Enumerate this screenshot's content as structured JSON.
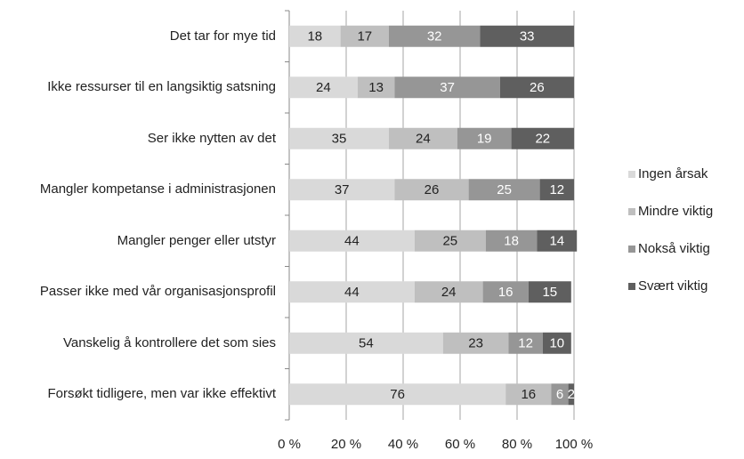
{
  "chart_data": {
    "type": "stacked_bar_horizontal",
    "categories": [
      "Det tar for mye tid",
      "Ikke ressurser til en langsiktig satsning",
      "Ser ikke nytten av det",
      "Mangler kompetanse i administrasjonen",
      "Mangler penger eller utstyr",
      "Passer ikke med vår organisasjonsprofil",
      "Vanskelig å kontrollere det som sies",
      "Forsøkt tidligere, men var ikke effektivt"
    ],
    "series": [
      {
        "name": "Ingen årsak",
        "color": "#d9d9d9",
        "values": [
          18,
          24,
          35,
          37,
          44,
          44,
          54,
          76
        ]
      },
      {
        "name": "Mindre viktig",
        "color": "#bfbfbf",
        "values": [
          17,
          13,
          24,
          26,
          25,
          24,
          23,
          16
        ]
      },
      {
        "name": "Nokså viktig",
        "color": "#969696",
        "values": [
          32,
          37,
          19,
          25,
          18,
          16,
          12,
          6
        ]
      },
      {
        "name": "Svært viktig",
        "color": "#5f5f5f",
        "values": [
          33,
          26,
          22,
          12,
          14,
          15,
          10,
          2
        ]
      }
    ],
    "xlim": [
      0,
      100
    ],
    "xticks": [
      {
        "value": 0,
        "label": "0 %"
      },
      {
        "value": 20,
        "label": "20 %"
      },
      {
        "value": 40,
        "label": "40 %"
      },
      {
        "value": 60,
        "label": "60 %"
      },
      {
        "value": 80,
        "label": "80 %"
      },
      {
        "value": 100,
        "label": "100 %"
      }
    ],
    "grid": true,
    "legend": "right"
  }
}
